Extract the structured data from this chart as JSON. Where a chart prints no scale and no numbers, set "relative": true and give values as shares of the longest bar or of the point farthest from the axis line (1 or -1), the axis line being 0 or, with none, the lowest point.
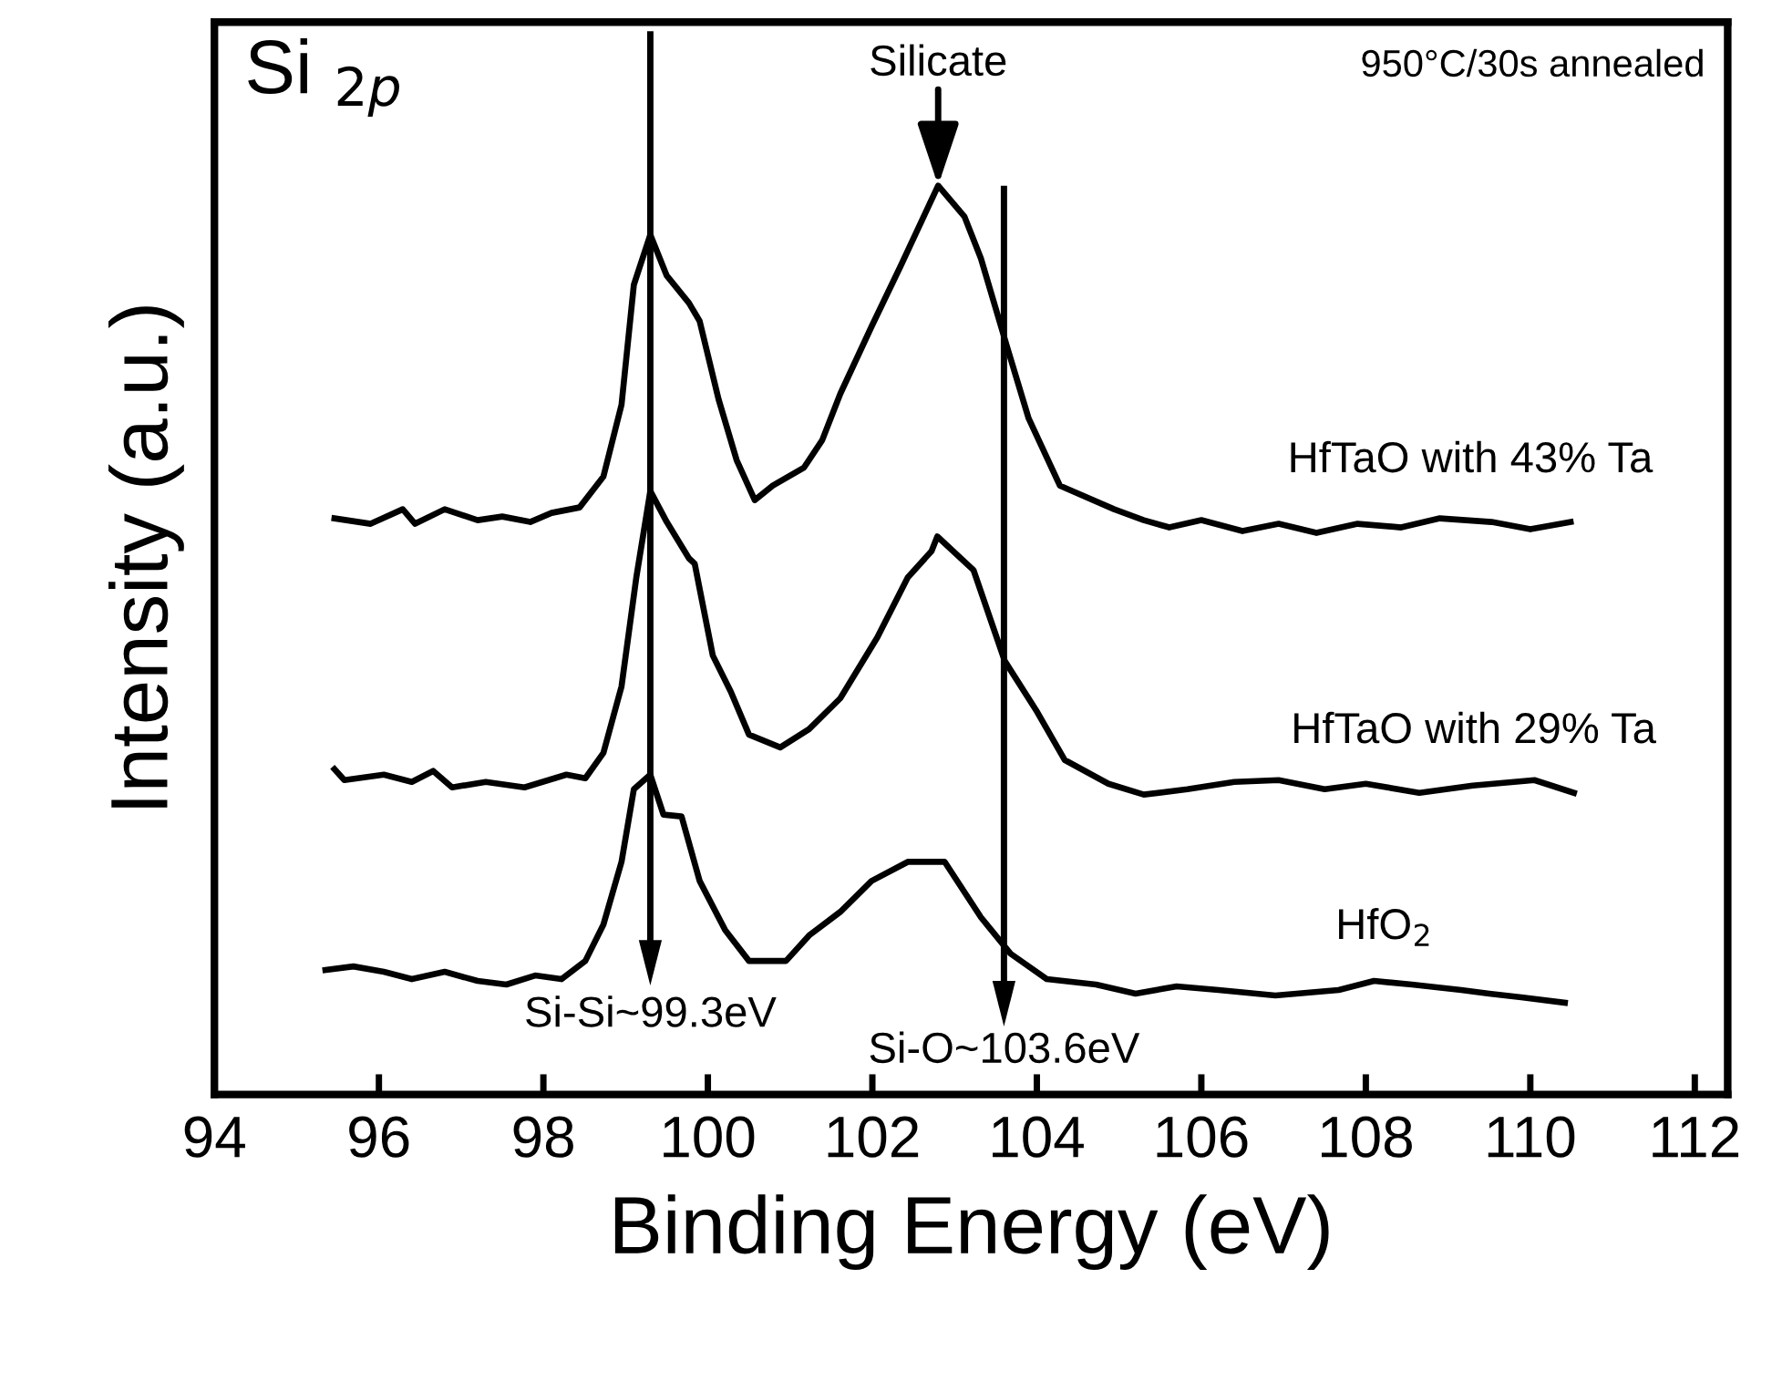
{
  "chart_data": {
    "type": "line",
    "relative": true,
    "xlabel": "Binding Energy (eV)",
    "ylabel": "Intensity (a.u.)",
    "xlim": [
      94,
      112.4
    ],
    "xticks": [
      94,
      96,
      98,
      100,
      102,
      104,
      106,
      108,
      110,
      112
    ],
    "tick_labels": "x",
    "grid": false,
    "legend": false,
    "marker": "none",
    "line_style": "solid",
    "series": [
      {
        "name": "HfTaO with 43% Ta",
        "color": "#000000",
        "x": [
          95.46,
          95.9,
          96.29,
          96.44,
          96.8,
          97.2,
          97.5,
          97.84,
          98.1,
          98.44,
          98.73,
          98.95,
          99.1,
          99.3,
          99.5,
          99.77,
          99.9,
          100.13,
          100.35,
          100.57,
          100.79,
          101.17,
          101.39,
          101.61,
          101.99,
          102.34,
          102.8,
          103.12,
          103.32,
          103.65,
          103.9,
          104.28,
          104.94,
          105.3,
          105.61,
          106.0,
          106.5,
          106.94,
          107.4,
          107.9,
          108.43,
          108.9,
          109.53,
          110.0,
          110.49
        ],
        "values": [
          0.634,
          0.628,
          0.644,
          0.628,
          0.644,
          0.632,
          0.636,
          0.63,
          0.64,
          0.646,
          0.68,
          0.759,
          0.891,
          0.946,
          0.901,
          0.871,
          0.851,
          0.765,
          0.698,
          0.654,
          0.67,
          0.69,
          0.72,
          0.771,
          0.845,
          0.911,
          1.0,
          0.966,
          0.92,
          0.819,
          0.744,
          0.67,
          0.644,
          0.632,
          0.624,
          0.632,
          0.62,
          0.628,
          0.618,
          0.628,
          0.624,
          0.634,
          0.63,
          0.622,
          0.63
        ]
      },
      {
        "name": "HfTaO with 29% Ta",
        "color": "#000000",
        "x": [
          95.46,
          95.58,
          96.06,
          96.4,
          96.66,
          96.89,
          97.3,
          97.77,
          98.28,
          98.51,
          98.73,
          98.95,
          99.13,
          99.3,
          99.5,
          99.77,
          99.84,
          100.06,
          100.28,
          100.5,
          100.88,
          101.23,
          101.61,
          102.06,
          102.43,
          102.72,
          102.79,
          103.23,
          103.61,
          103.99,
          104.34,
          104.87,
          105.3,
          105.83,
          106.4,
          106.94,
          107.5,
          108.0,
          108.65,
          109.3,
          110.05,
          110.53
        ],
        "values": [
          0.358,
          0.346,
          0.352,
          0.344,
          0.356,
          0.338,
          0.344,
          0.338,
          0.352,
          0.348,
          0.376,
          0.449,
          0.569,
          0.664,
          0.63,
          0.59,
          0.584,
          0.483,
          0.443,
          0.396,
          0.382,
          0.402,
          0.436,
          0.503,
          0.569,
          0.598,
          0.614,
          0.577,
          0.477,
          0.423,
          0.368,
          0.342,
          0.33,
          0.336,
          0.344,
          0.346,
          0.336,
          0.342,
          0.332,
          0.34,
          0.346,
          0.332
        ]
      },
      {
        "name": "HfO$_{2}$",
        "color": "#000000",
        "x": [
          95.35,
          95.69,
          96.06,
          96.4,
          96.8,
          97.2,
          97.55,
          97.9,
          98.22,
          98.51,
          98.73,
          98.95,
          99.1,
          99.3,
          99.46,
          99.68,
          99.9,
          100.21,
          100.5,
          100.95,
          101.23,
          101.61,
          101.99,
          102.43,
          102.88,
          103.32,
          103.68,
          104.12,
          104.72,
          105.2,
          105.7,
          106.21,
          106.9,
          107.67,
          108.1,
          108.56,
          109.16,
          109.5,
          109.89,
          110.42
        ],
        "values": [
          0.137,
          0.141,
          0.135,
          0.127,
          0.135,
          0.125,
          0.121,
          0.131,
          0.127,
          0.147,
          0.187,
          0.256,
          0.336,
          0.352,
          0.308,
          0.306,
          0.235,
          0.181,
          0.147,
          0.147,
          0.175,
          0.201,
          0.235,
          0.256,
          0.256,
          0.195,
          0.155,
          0.127,
          0.121,
          0.111,
          0.119,
          0.115,
          0.109,
          0.115,
          0.125,
          0.121,
          0.115,
          0.111,
          0.107,
          0.101
        ]
      }
    ],
    "annotations": [
      "Si $_{2p}$",
      "950°C/30s annealed",
      {
        "text": "Silicate",
        "x": 102.8,
        "y": 1.0
      }
    ],
    "ref_lines": [
      {
        "axis": "x",
        "value": 99.3,
        "label": "Si-Si~99.3eV",
        "color": "#000000"
      },
      {
        "axis": "x",
        "value": 103.6,
        "label": "Si-O~103.6eV",
        "color": "#000000"
      }
    ]
  }
}
